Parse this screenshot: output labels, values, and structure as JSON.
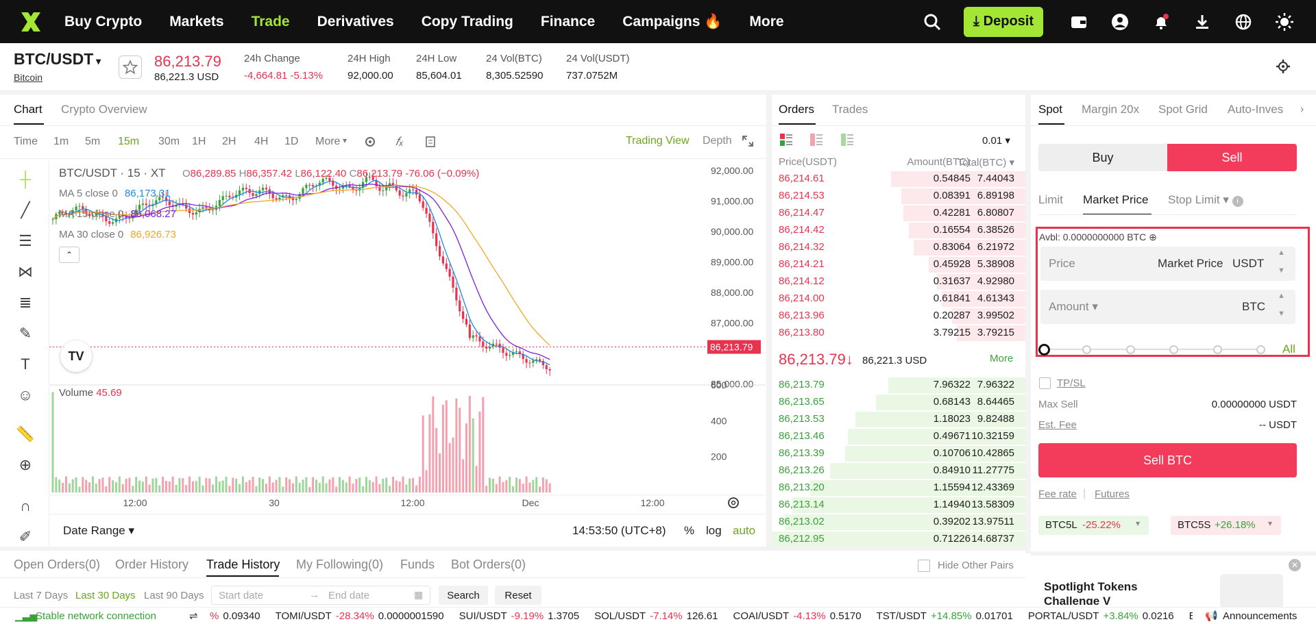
{
  "nav": {
    "items": [
      "Buy Crypto",
      "Markets",
      "Trade",
      "Derivatives",
      "Copy Trading",
      "Finance",
      "Campaigns 🔥",
      "More"
    ],
    "active_index": 2,
    "deposit": "Deposit"
  },
  "ticker": {
    "pair": "BTC/USDT",
    "pair_sub": "Bitcoin",
    "last": "86,213.79",
    "last_usd": "86,221.3 USD",
    "stats": [
      {
        "label": "24h Change",
        "value": "-4,664.81 -5.13%"
      },
      {
        "label": "24H High",
        "value": "92,000.00"
      },
      {
        "label": "24H Low",
        "value": "85,604.01"
      },
      {
        "label": "24 Vol(BTC)",
        "value": "8,305.52590"
      },
      {
        "label": "24 Vol(USDT)",
        "value": "737.0752M"
      }
    ]
  },
  "chart_panel": {
    "tabs": [
      "Chart",
      "Crypto Overview"
    ],
    "timeframes": [
      "Time",
      "1m",
      "5m",
      "15m",
      "30m",
      "1H",
      "2H",
      "4H",
      "1D",
      "More"
    ],
    "active_tf": "15m",
    "tradingview": "Trading View",
    "depth": "Depth",
    "legend_title": "BTC/USDT · 15 · XT",
    "ohlc": {
      "o_label": "O",
      "o": "86,289.85",
      "h_label": "H",
      "h": "86,357.42",
      "l_label": "L",
      "l": "86,122.40",
      "c_label": "C",
      "c": "86,213.79",
      "chg": "-76.06 (−0.09%)"
    },
    "ma": [
      {
        "label": "MA 5 close 0",
        "value": "86,173.31",
        "color": "#1e88e5"
      },
      {
        "label": "MA 15 close 0",
        "value": "86,068.27",
        "color": "#7b1fe0"
      },
      {
        "label": "MA 30 close 0",
        "value": "86,926.73",
        "color": "#f5a623"
      }
    ],
    "price_axis": [
      "92,000.00",
      "91,000.00",
      "90,000.00",
      "89,000.00",
      "88,000.00",
      "87,000.00",
      "85,000.00"
    ],
    "price_tag": "86,213.79",
    "volume_label": "Volume",
    "volume_value": "45.69",
    "vol_axis": [
      "600",
      "400",
      "200"
    ],
    "time_axis": [
      "12:00",
      "30",
      "12:00",
      "Dec",
      "12:00"
    ],
    "date_range": "Date Range",
    "clock": "14:53:50 (UTC+8)",
    "pct": "%",
    "log": "log",
    "auto": "auto"
  },
  "orderbook": {
    "tabs": [
      "Orders",
      "Trades"
    ],
    "precision": "0.01",
    "headers": [
      "Price(USDT)",
      "Amount(BTC)",
      "Total(BTC)"
    ],
    "asks": [
      [
        "86,214.61",
        "0.54845",
        "7.44043"
      ],
      [
        "86,214.53",
        "0.08391",
        "6.89198"
      ],
      [
        "86,214.47",
        "0.42281",
        "6.80807"
      ],
      [
        "86,214.42",
        "0.16554",
        "6.38526"
      ],
      [
        "86,214.32",
        "0.83064",
        "6.21972"
      ],
      [
        "86,214.21",
        "0.45928",
        "5.38908"
      ],
      [
        "86,214.12",
        "0.31637",
        "4.92980"
      ],
      [
        "86,214.00",
        "0.61841",
        "4.61343"
      ],
      [
        "86,213.96",
        "0.20287",
        "3.99502"
      ],
      [
        "86,213.80",
        "3.79215",
        "3.79215"
      ]
    ],
    "ask_depth": [
      0.53,
      0.49,
      0.48,
      0.46,
      0.44,
      0.38,
      0.35,
      0.33,
      0.29,
      0.27
    ],
    "mid": "86,213.79↓",
    "mid_usd": "86,221.3 USD",
    "more": "More",
    "bids": [
      [
        "86,213.79",
        "7.96322",
        "7.96322"
      ],
      [
        "86,213.65",
        "0.68143",
        "8.64465"
      ],
      [
        "86,213.53",
        "1.18023",
        "9.82488"
      ],
      [
        "86,213.46",
        "0.49671",
        "10.32159"
      ],
      [
        "86,213.39",
        "0.10706",
        "10.42865"
      ],
      [
        "86,213.26",
        "0.84910",
        "11.27775"
      ],
      [
        "86,213.20",
        "1.15594",
        "12.43369"
      ],
      [
        "86,213.14",
        "1.14940",
        "13.58309"
      ],
      [
        "86,213.02",
        "0.39202",
        "13.97511"
      ],
      [
        "86,212.95",
        "0.71226",
        "14.68737"
      ]
    ],
    "bid_depth": [
      0.54,
      0.59,
      0.67,
      0.7,
      0.71,
      0.77,
      0.85,
      0.92,
      0.95,
      1.0
    ]
  },
  "trade": {
    "tabs": [
      "Spot",
      "Margin 20x",
      "Spot Grid",
      "Auto-Inves"
    ],
    "buy": "Buy",
    "sell": "Sell",
    "order_types": [
      "Limit",
      "Market Price",
      "Stop Limit"
    ],
    "avbl": "Avbl: 0.0000000000 BTC",
    "price_label": "Price",
    "price_value": "Market Price",
    "price_unit": "USDT",
    "amount_label": "Amount",
    "amount_unit": "BTC",
    "all": "All",
    "tpsl": "TP/SL",
    "max_sell_label": "Max Sell",
    "max_sell": "0.00000000 USDT",
    "fee_label": "Est. Fee",
    "fee": "-- USDT",
    "sell_btn": "Sell BTC",
    "fee_rate": "Fee rate",
    "futures": "Futures",
    "lev": [
      {
        "name": "BTC5L",
        "chg": "-25.22%"
      },
      {
        "name": "BTC5S",
        "chg": "+26.18%"
      }
    ],
    "promo": "Spotlight Tokens Challenge V"
  },
  "bottom": {
    "tabs": [
      "Open Orders(0)",
      "Order History",
      "Trade History",
      "My Following(0)",
      "Funds",
      "Bot Orders(0)"
    ],
    "active": 2,
    "hide_pairs": "Hide Other Pairs",
    "ranges": [
      "Last 7 Days",
      "Last 30 Days",
      "Last 90 Days"
    ],
    "start": "Start date",
    "end": "End date",
    "search": "Search",
    "reset": "Reset"
  },
  "statusbar": {
    "network": "Stable network connection",
    "tickers": [
      {
        "pair": "",
        "chg": "%",
        "price": "0.09340"
      },
      {
        "pair": "TOMI/USDT",
        "chg": "-28.34%",
        "price": "0.0000001590"
      },
      {
        "pair": "SUI/USDT",
        "chg": "-9.19%",
        "price": "1.3705"
      },
      {
        "pair": "SOL/USDT",
        "chg": "-7.14%",
        "price": "126.61"
      },
      {
        "pair": "COAI/USDT",
        "chg": "-4.13%",
        "price": "0.5170"
      },
      {
        "pair": "TST/USDT",
        "chg": "+14.85%",
        "price": "0.01701"
      },
      {
        "pair": "PORTAL/USDT",
        "chg": "+3.84%",
        "price": "0.0216"
      },
      {
        "pair": "BC",
        "chg": "",
        "price": ""
      }
    ],
    "announcements": "Announcements"
  }
}
